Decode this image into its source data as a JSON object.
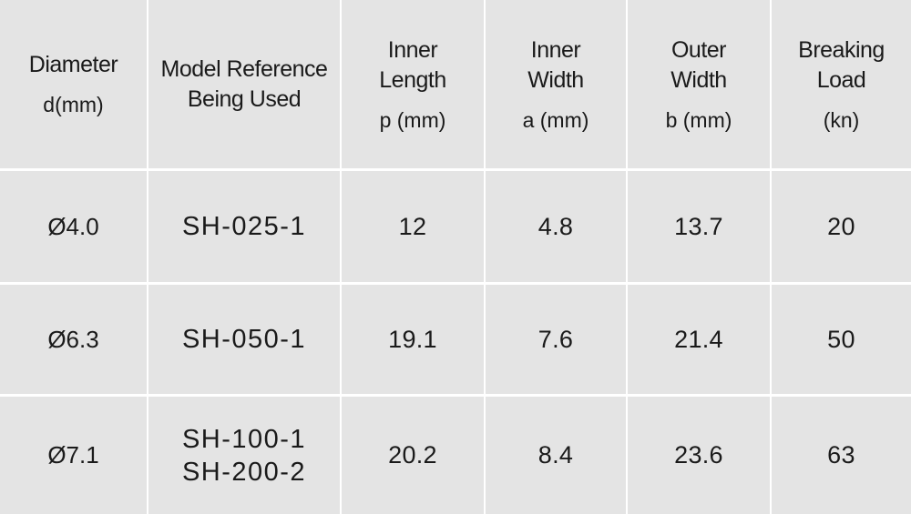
{
  "table": {
    "headers": [
      {
        "title_lines": [
          "Diameter"
        ],
        "unit": "d(mm)"
      },
      {
        "title_lines": [
          "Model Reference",
          "Being Used"
        ],
        "unit": ""
      },
      {
        "title_lines": [
          "Inner",
          "Length"
        ],
        "unit": "p (mm)"
      },
      {
        "title_lines": [
          "Inner",
          "Width"
        ],
        "unit": "a (mm)"
      },
      {
        "title_lines": [
          "Outer",
          "Width"
        ],
        "unit": "b (mm)"
      },
      {
        "title_lines": [
          "Breaking",
          "Load"
        ],
        "unit": "(kn)"
      }
    ],
    "rows": [
      {
        "diameter": "Ø4.0",
        "models": [
          "SH-025-1"
        ],
        "inner_length": "12",
        "inner_width": "4.8",
        "outer_width": "13.7",
        "breaking_load": "20"
      },
      {
        "diameter": "Ø6.3",
        "models": [
          "SH-050-1"
        ],
        "inner_length": "19.1",
        "inner_width": "7.6",
        "outer_width": "21.4",
        "breaking_load": "50"
      },
      {
        "diameter": "Ø7.1",
        "models": [
          "SH-100-1",
          "SH-200-2"
        ],
        "inner_length": "20.2",
        "inner_width": "8.4",
        "outer_width": "23.6",
        "breaking_load": "63"
      }
    ]
  }
}
